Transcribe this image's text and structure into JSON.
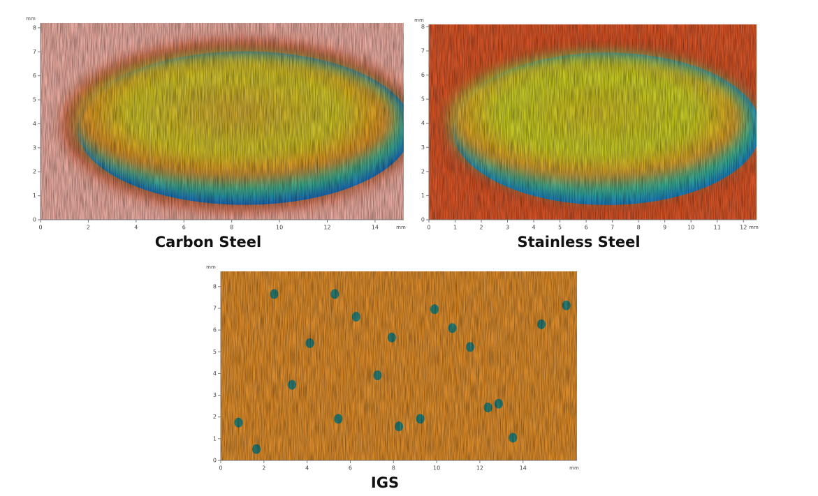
{
  "chart_data": [
    {
      "type": "surface-map",
      "title": "Carbon Steel",
      "x_unit": "mm",
      "y_unit": "mm",
      "xlim": [
        0,
        15.2
      ],
      "ylim": [
        0,
        8.2
      ],
      "xticks": [
        0,
        2,
        4,
        6,
        8,
        10,
        12,
        14
      ],
      "yticks": [
        0,
        1,
        2,
        3,
        4,
        5,
        6,
        7,
        8
      ]
    },
    {
      "type": "surface-map",
      "title": "Stainless Steel",
      "x_unit": "mm",
      "y_unit": "mm",
      "xlim": [
        0,
        12.5
      ],
      "ylim": [
        0,
        8.1
      ],
      "xticks": [
        0,
        1,
        2,
        3,
        4,
        5,
        6,
        7,
        8,
        9,
        10,
        11,
        12
      ],
      "yticks": [
        0,
        1,
        2,
        3,
        4,
        5,
        6,
        7,
        8
      ]
    },
    {
      "type": "surface-map",
      "title": "IGS",
      "x_unit": "mm",
      "y_unit": "mm",
      "xlim": [
        0,
        16.5
      ],
      "ylim": [
        0,
        8.7
      ],
      "xticks": [
        0,
        2,
        4,
        6,
        8,
        10,
        12,
        14
      ],
      "yticks": [
        0,
        1,
        2,
        3,
        4,
        5,
        6,
        7,
        8
      ]
    }
  ]
}
